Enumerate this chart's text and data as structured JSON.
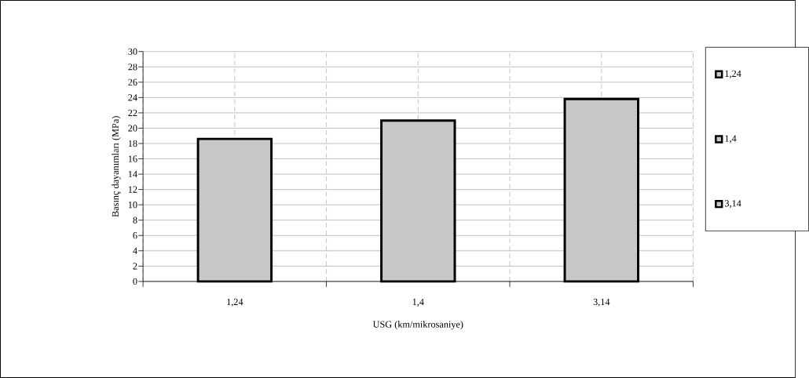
{
  "chart_data": {
    "type": "bar",
    "xlabel": "USG (km/mikrosaniye)",
    "ylabel": "Basınç dayanımları (MPa)",
    "categories": [
      "1,24",
      "1,4",
      "3,14"
    ],
    "series": [
      {
        "name": "1,24",
        "color": "#c8c8c8",
        "values": [
          18.6,
          null,
          null
        ]
      },
      {
        "name": "1,4",
        "color": "#c8c8c8",
        "values": [
          null,
          21.0,
          null
        ]
      },
      {
        "name": "3,14",
        "color": "#c8c8c8",
        "values": [
          null,
          null,
          23.8
        ]
      }
    ],
    "ylim": [
      0,
      30
    ],
    "yticks": [
      0,
      2,
      4,
      6,
      8,
      10,
      12,
      14,
      16,
      18,
      20,
      22,
      24,
      26,
      28,
      30
    ],
    "grid": true,
    "legend": "right"
  }
}
